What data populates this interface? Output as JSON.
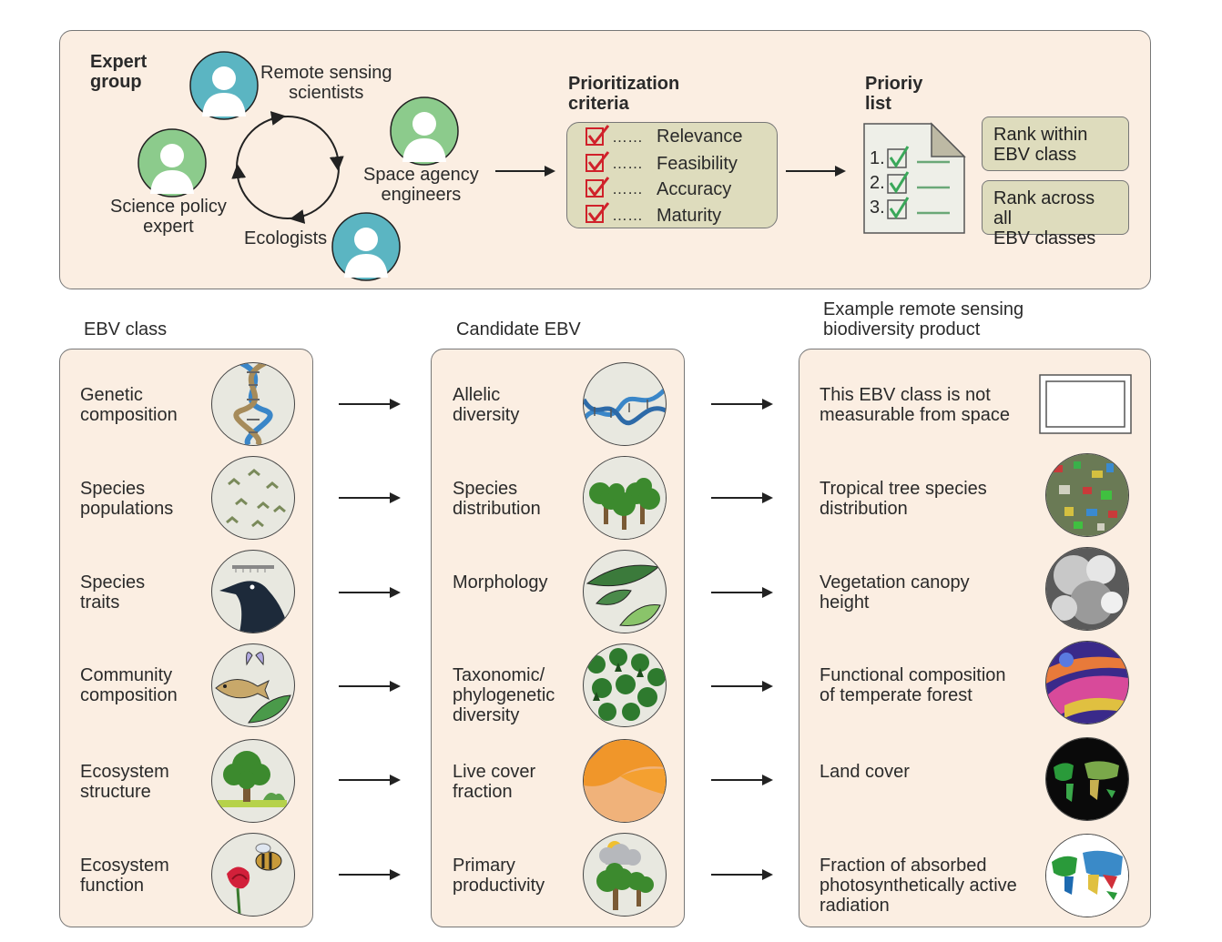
{
  "top": {
    "expert_group_title": "Expert\ngroup",
    "roles": {
      "remote_sensing": "Remote sensing\nscientists",
      "space_agency": "Space agency\nengineers",
      "science_policy": "Science policy\nexpert",
      "ecologists": "Ecologists"
    },
    "criteria_title": "Prioritization\ncriteria",
    "criteria": [
      "Relevance",
      "Feasibility",
      "Accuracy",
      "Maturity"
    ],
    "criteria_dots": "……",
    "priority_title": "Prioriy\nlist",
    "priority_numbers": [
      "1.",
      "2.",
      "3."
    ],
    "rank_within": "Rank within\nEBV class",
    "rank_across": "Rank across all\nEBV classes"
  },
  "headers": {
    "ebv_class": "EBV class",
    "candidate": "Candidate EBV",
    "product": "Example remote sensing\nbiodiversity product"
  },
  "rows": [
    {
      "ebv_class": "Genetic\ncomposition",
      "candidate": "Allelic\ndiversity",
      "product": "This EBV class is not\nmeasurable from space"
    },
    {
      "ebv_class": "Species\npopulations",
      "candidate": "Species\ndistribution",
      "product": "Tropical tree species\ndistribution"
    },
    {
      "ebv_class": "Species\ntraits",
      "candidate": "Morphology",
      "product": "Vegetation canopy\nheight"
    },
    {
      "ebv_class": "Community\ncomposition",
      "candidate": "Taxonomic/\nphylogenetic\ndiversity",
      "product": "Functional composition\nof temperate forest"
    },
    {
      "ebv_class": "Ecosystem\nstructure",
      "candidate": "Live cover\nfraction",
      "product": "Land cover"
    },
    {
      "ebv_class": "Ecosystem\nfunction",
      "candidate": "Primary\nproductivity",
      "product": "Fraction of absorbed\nphotosynthetically active\nradiation"
    }
  ],
  "icons": {
    "rows_left": [
      "dna-icon",
      "birds-icon",
      "crow-icon",
      "butterfly-fish-leaf-icon",
      "tree-icon",
      "bee-flower-icon"
    ],
    "rows_mid": [
      "dna-strand-icon",
      "trees-icon",
      "leaves-icon",
      "forest-icon",
      "cover-map-icon",
      "cloud-tree-icon"
    ],
    "rows_right": [
      "empty-frame-icon",
      "species-map-icon",
      "canopy-map-icon",
      "composition-map-icon",
      "world-land-cover-icon",
      "world-fapar-icon"
    ]
  },
  "colors": {
    "panel_fill": "#fbeee2",
    "criteria_fill": "#dedcbd",
    "person_teal": "#5bb5c2",
    "person_green": "#8ccb8c",
    "check_red": "#d0212a",
    "check_green": "#3aa85a"
  }
}
